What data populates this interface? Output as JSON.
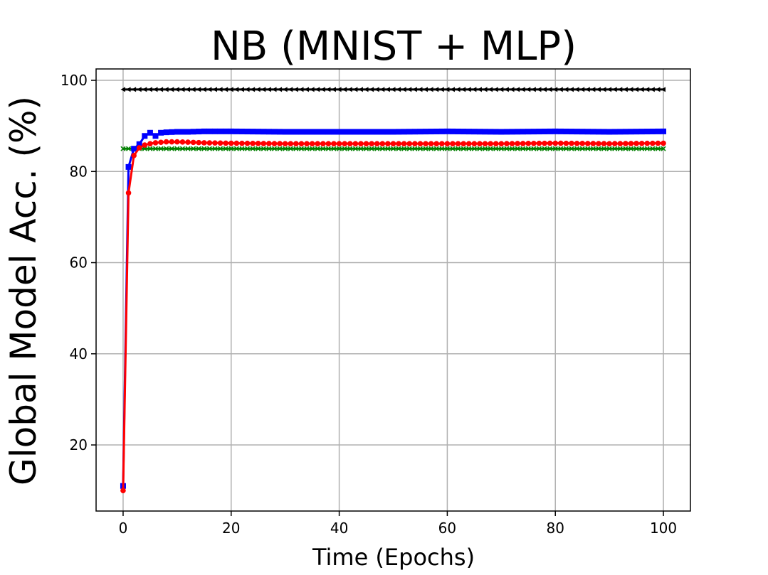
{
  "chart_data": {
    "type": "line",
    "title": "NB (MNIST + MLP)",
    "xlabel": "Time (Epochs)",
    "ylabel": "Global Model Acc. (%)",
    "xlim": [
      -5,
      105
    ],
    "ylim": [
      5.5,
      102.5
    ],
    "xticks": [
      0,
      20,
      40,
      60,
      80,
      100
    ],
    "yticks": [
      20,
      40,
      60,
      80,
      100
    ],
    "grid": true,
    "series": [
      {
        "color": "#000000",
        "marker": "triangle-left",
        "x": [
          0,
          100
        ],
        "y": [
          98,
          98
        ]
      },
      {
        "color": "#008000",
        "marker": "x",
        "x": [
          0,
          100
        ],
        "y": [
          85,
          85
        ]
      },
      {
        "color": "#0000ff",
        "marker": "square",
        "x": [
          0,
          1,
          2,
          3,
          4,
          5,
          6,
          7,
          8,
          10,
          12,
          15,
          20,
          30,
          40,
          50,
          60,
          70,
          80,
          90,
          100
        ],
        "y": [
          11,
          81,
          85,
          86,
          87.8,
          88.5,
          87.8,
          88.5,
          88.6,
          88.7,
          88.7,
          88.8,
          88.8,
          88.7,
          88.7,
          88.7,
          88.8,
          88.7,
          88.8,
          88.7,
          88.8
        ]
      },
      {
        "color": "#ff0000",
        "marker": "circle",
        "x": [
          0,
          1,
          2,
          3,
          4,
          5,
          6,
          7,
          8,
          10,
          15,
          20,
          30,
          40,
          50,
          60,
          70,
          80,
          90,
          100
        ],
        "y": [
          10,
          75.3,
          83.5,
          85.2,
          85.8,
          86.1,
          86.3,
          86.4,
          86.5,
          86.5,
          86.3,
          86.2,
          86.1,
          86.1,
          86.1,
          86.1,
          86.1,
          86.2,
          86.1,
          86.2
        ]
      }
    ]
  }
}
